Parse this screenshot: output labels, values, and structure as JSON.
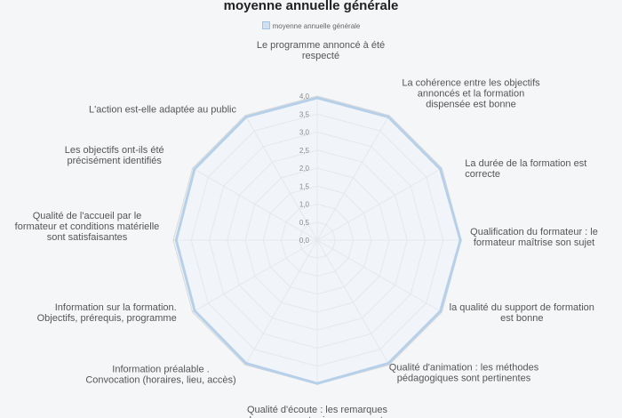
{
  "chart_data": {
    "type": "radar",
    "title": "moyenne annuelle générale",
    "legend": "moyenne annuelle générale",
    "legend_position": "top",
    "ylim": [
      0,
      4
    ],
    "rmax": 4.0,
    "ticks": [
      {
        "value": 0,
        "label": "0,0"
      },
      {
        "value": 0.5,
        "label": "0,5"
      },
      {
        "value": 1.0,
        "label": "1,0"
      },
      {
        "value": 1.5,
        "label": "1,5"
      },
      {
        "value": 2.0,
        "label": "2,0"
      },
      {
        "value": 2.5,
        "label": "2,5"
      },
      {
        "value": 3.0,
        "label": "3,0"
      },
      {
        "value": 3.5,
        "label": "3,5"
      },
      {
        "value": 4.0,
        "label": "4,0"
      }
    ],
    "categories": [
      "Le programme annoncé à été respecté",
      "La cohérence entre les objectifs annoncés et la formation dispensée est bonne",
      "La durée de la formation est correcte",
      "Qualification du formateur : le formateur maîtrise son sujet",
      "la qualité du support de formation est bonne",
      "Qualité d'animation  : les méthodes pédagogiques sont pertinentes",
      "Qualité d'écoute : les remarques du groupe sont prises en compte",
      "Information préalable . Convocation (horaires, lieu, accès)",
      "Information sur la formation. Objectifs, prérequis, programme",
      "Qualité de l'accueil par le formateur  et conditions matérielle sont satisfaisantes",
      "Les objectifs ont-ils été précisément identifiés",
      "L'action est-elle adaptée au public"
    ],
    "category_lines": [
      [
        "Le programme annoncé à été",
        "respecté"
      ],
      [
        "La cohérence entre les objectifs",
        "annoncés et la formation",
        "dispensée est bonne"
      ],
      [
        "La durée de la formation est",
        "correcte"
      ],
      [
        "Qualification du formateur : le",
        "formateur maîtrise son sujet"
      ],
      [
        "la qualité du support de formation",
        "est bonne"
      ],
      [
        "Qualité d'animation  : les méthodes",
        "pédagogiques sont pertinentes"
      ],
      [
        "Qualité d'écoute : les remarques",
        "du groupe sont prises en compte"
      ],
      [
        "Information préalable .",
        "Convocation (horaires, lieu, accès)"
      ],
      [
        "Information sur la formation.",
        "Objectifs, prérequis, programme"
      ],
      [
        "Qualité de l'accueil par le",
        "formateur  et conditions matérielle",
        "sont satisfaisantes"
      ],
      [
        "Les objectifs ont-ils été",
        "précisément identifiés"
      ],
      [
        "L'action est-elle adaptée au public"
      ]
    ],
    "series": [
      {
        "name": "moyenne annuelle générale",
        "values": [
          3.95,
          3.95,
          3.95,
          3.98,
          3.95,
          3.95,
          3.98,
          3.95,
          3.93,
          3.92,
          3.94,
          3.95
        ]
      }
    ],
    "colors": {
      "series_line": "#b7d0ea",
      "series_fill": "#eef3f9",
      "grid": "#d8d8d8",
      "tick_text": "#8a8a8a",
      "category_text": "#555555"
    }
  }
}
